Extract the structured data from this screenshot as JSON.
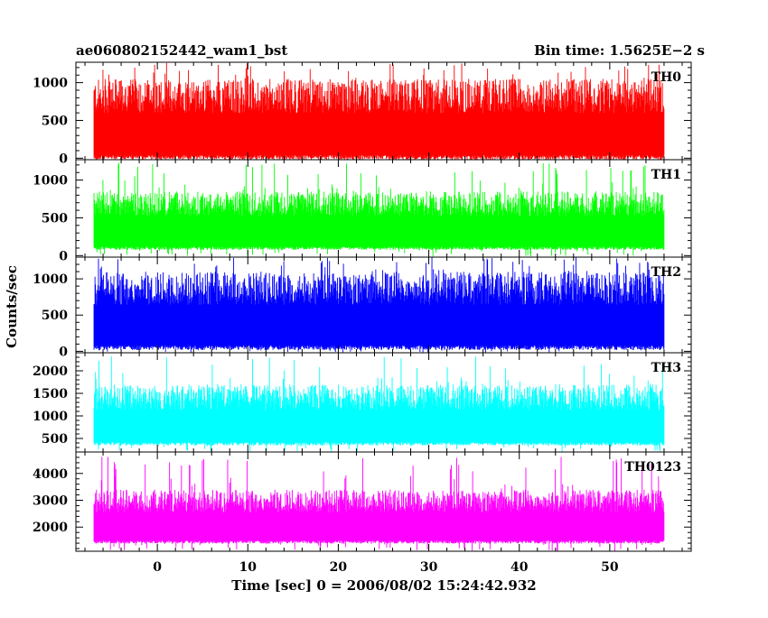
{
  "header": {
    "left_title": "ae060802152442_wam1_bst",
    "right_title": "Bin time: 1.5625E−2 s"
  },
  "chart_data": {
    "type": "line",
    "title": "ae060802152442_wam1_bst",
    "subtitle": "Bin time: 1.5625E−2 s",
    "xlabel": "Time [sec] 0 = 2006/08/02 15:24:42.932",
    "ylabel": "Counts/sec",
    "xlim": [
      -9,
      59
    ],
    "x_ticks": [
      0,
      10,
      20,
      30,
      40,
      50
    ],
    "x_tick_labels": [
      "0",
      "10",
      "20",
      "30",
      "40",
      "50"
    ],
    "data_x_range": [
      -7,
      56
    ],
    "bin_time": 0.015625,
    "grid": false,
    "panels": [
      {
        "name": "TH0",
        "color": "#ff0000",
        "ylim": [
          -20,
          1270
        ],
        "y_ticks": [
          0,
          500,
          1000
        ],
        "y_tick_labels": [
          "0",
          "500",
          "1000"
        ],
        "band": {
          "low": 40,
          "high": 1050,
          "spike_max": 1270
        }
      },
      {
        "name": "TH1",
        "color": "#00ff00",
        "ylim": [
          -20,
          1270
        ],
        "y_ticks": [
          0,
          500,
          1000
        ],
        "y_tick_labels": [
          "0",
          "500",
          "1000"
        ],
        "band": {
          "low": 120,
          "high": 850,
          "spike_max": 1230
        }
      },
      {
        "name": "TH2",
        "color": "#0000ff",
        "ylim": [
          -20,
          1300
        ],
        "y_ticks": [
          0,
          500,
          1000
        ],
        "y_tick_labels": [
          "0",
          "500",
          "1000"
        ],
        "band": {
          "low": 80,
          "high": 1100,
          "spike_max": 1300
        }
      },
      {
        "name": "TH3",
        "color": "#00ffff",
        "ylim": [
          200,
          2400
        ],
        "y_ticks": [
          500,
          1000,
          1500,
          2000
        ],
        "y_tick_labels": [
          "500",
          "1000",
          "1500",
          "2000"
        ],
        "band": {
          "low": 420,
          "high": 1700,
          "spike_max": 2330
        }
      },
      {
        "name": "TH0123",
        "color": "#ff00ff",
        "ylim": [
          1100,
          4800
        ],
        "y_ticks": [
          2000,
          3000,
          4000
        ],
        "y_tick_labels": [
          "2000",
          "3000",
          "4000"
        ],
        "band": {
          "low": 1500,
          "high": 3400,
          "spike_max": 4650
        }
      }
    ]
  }
}
